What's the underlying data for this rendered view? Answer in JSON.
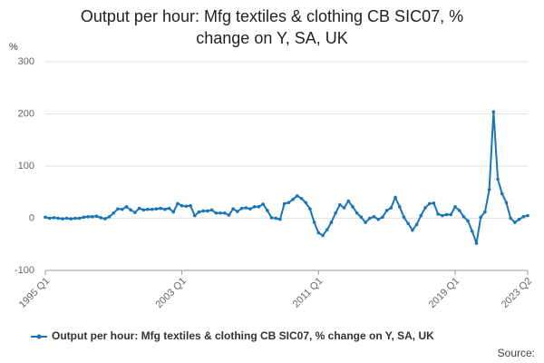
{
  "chart_data": {
    "type": "line",
    "title": "Output per hour: Mfg textiles & clothing CB SIC07, % change on Y, SA, UK",
    "y_unit": "%",
    "source": "Source:",
    "categories": [
      "1995 Q1",
      null,
      null,
      null,
      null,
      null,
      null,
      null,
      null,
      null,
      null,
      null,
      null,
      null,
      null,
      null,
      null,
      null,
      null,
      null,
      null,
      null,
      null,
      null,
      null,
      null,
      null,
      null,
      null,
      null,
      null,
      null,
      "2003 Q1",
      null,
      null,
      null,
      null,
      null,
      null,
      null,
      null,
      null,
      null,
      null,
      null,
      null,
      null,
      null,
      null,
      null,
      null,
      null,
      null,
      null,
      null,
      null,
      null,
      null,
      null,
      null,
      null,
      null,
      null,
      null,
      "2011 Q1",
      null,
      null,
      null,
      null,
      null,
      null,
      null,
      null,
      null,
      null,
      null,
      null,
      null,
      null,
      null,
      null,
      null,
      null,
      null,
      null,
      null,
      null,
      null,
      null,
      null,
      null,
      null,
      null,
      null,
      null,
      null,
      "2019 Q1",
      null,
      null,
      null,
      null,
      null,
      null,
      null,
      null,
      null,
      null,
      null,
      null,
      null,
      null,
      null,
      null,
      "2023 Q2"
    ],
    "series": [
      {
        "name": "Output per hour: Mfg textiles & clothing CB SIC07, % change on Y, SA, UK",
        "color": "#1a74b8",
        "values": [
          2,
          0,
          1,
          0,
          -1,
          0,
          -1,
          0,
          0,
          2,
          3,
          3,
          4,
          1,
          -1,
          3,
          10,
          18,
          17,
          22,
          16,
          11,
          19,
          16,
          17,
          17,
          18,
          19,
          17,
          19,
          12,
          28,
          24,
          23,
          24,
          5,
          12,
          14,
          14,
          16,
          10,
          10,
          10,
          6,
          18,
          13,
          19,
          20,
          18,
          22,
          22,
          27,
          15,
          1,
          0,
          -2,
          28,
          30,
          36,
          43,
          38,
          30,
          18,
          -8,
          -28,
          -33,
          -22,
          -8,
          10,
          26,
          20,
          33,
          22,
          10,
          2,
          -8,
          0,
          3,
          -2,
          2,
          15,
          20,
          40,
          22,
          2,
          -10,
          -23,
          -12,
          5,
          20,
          28,
          29,
          8,
          5,
          7,
          7,
          22,
          15,
          3,
          -5,
          -25,
          -48,
          2,
          12,
          55,
          204,
          75,
          47,
          30,
          0,
          -8,
          -2,
          3,
          5
        ]
      }
    ],
    "ylim": [
      -100,
      300
    ],
    "yticks": [
      -100,
      0,
      100,
      200,
      300
    ],
    "grid": true
  }
}
